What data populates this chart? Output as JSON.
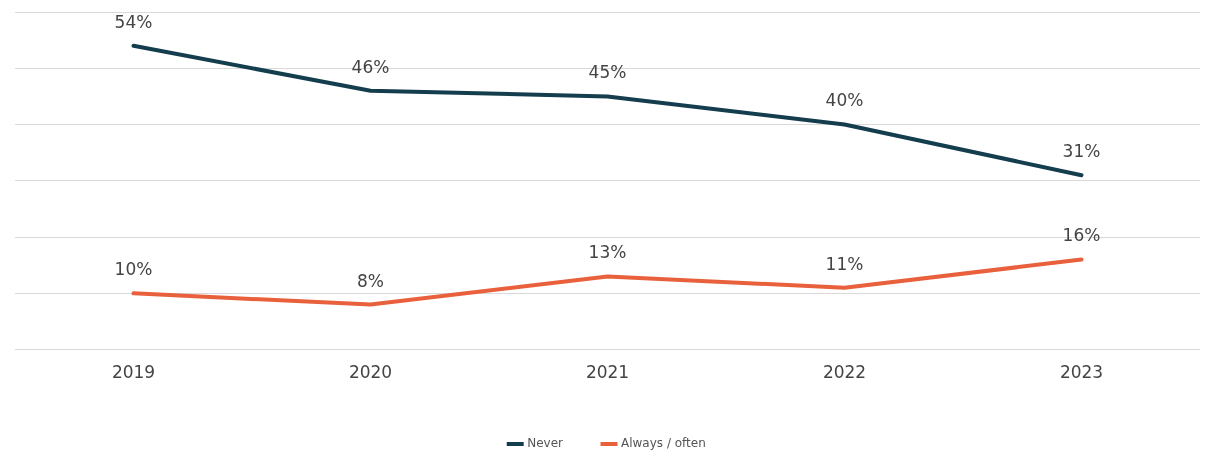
{
  "chart_data": {
    "type": "line",
    "categories": [
      "2019",
      "2020",
      "2021",
      "2022",
      "2023"
    ],
    "series": [
      {
        "name": "Never",
        "color": "#143d4d",
        "values": [
          54,
          46,
          45,
          40,
          31
        ],
        "value_labels": [
          "54%",
          "46%",
          "45%",
          "40%",
          "31%"
        ]
      },
      {
        "name": "Always / often",
        "color": "#e8603c",
        "values": [
          10,
          8,
          13,
          11,
          16
        ],
        "value_labels": [
          "10%",
          "8%",
          "13%",
          "11%",
          "16%"
        ]
      }
    ],
    "tick_labels": "x",
    "grid": "y",
    "legend": "bottom",
    "marker": "none",
    "line_style": "solid"
  }
}
